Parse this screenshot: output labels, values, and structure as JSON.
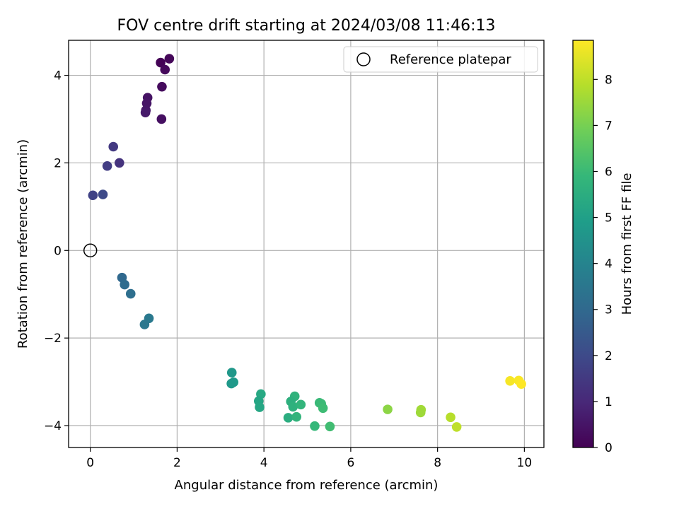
{
  "chart_data": {
    "type": "scatter",
    "title": "FOV centre drift starting at 2024/03/08 11:46:13",
    "xlabel": "Angular distance from reference (arcmin)",
    "ylabel": "Rotation from reference (arcmin)",
    "xlim": [
      -0.5,
      10.45
    ],
    "ylim": [
      -4.5,
      4.8
    ],
    "xticks": [
      0,
      2,
      4,
      6,
      8,
      10
    ],
    "xtick_labels": [
      "0",
      "2",
      "4",
      "6",
      "8",
      "10"
    ],
    "yticks": [
      4,
      2,
      0,
      -2,
      -4
    ],
    "ytick_labels": [
      "4",
      "2",
      "0",
      "−2",
      "−4"
    ],
    "grid": true,
    "legend": {
      "position": "top-right",
      "label": "Reference platepar"
    },
    "reference_point": {
      "x": 0,
      "y": 0
    },
    "colorbar": {
      "label": "Hours from first FF file",
      "range": [
        0,
        8.85
      ],
      "ticks": [
        0,
        1,
        2,
        3,
        4,
        5,
        6,
        7,
        8
      ],
      "tick_labels": [
        "0",
        "1",
        "2",
        "3",
        "4",
        "5",
        "6",
        "7",
        "8"
      ],
      "colormap": [
        "#440154",
        "#482878",
        "#3e4989",
        "#31688e",
        "#26828e",
        "#1f9e89",
        "#35b779",
        "#6ece58",
        "#b5de2b",
        "#fde725"
      ]
    },
    "points": [
      {
        "x": 1.62,
        "y": 4.29,
        "c": 0.05
      },
      {
        "x": 1.82,
        "y": 4.38,
        "c": 0.15
      },
      {
        "x": 1.72,
        "y": 4.13,
        "c": 0.2
      },
      {
        "x": 1.65,
        "y": 3.74,
        "c": 0.25
      },
      {
        "x": 1.32,
        "y": 3.49,
        "c": 0.45
      },
      {
        "x": 1.3,
        "y": 3.36,
        "c": 0.5
      },
      {
        "x": 1.28,
        "y": 3.2,
        "c": 0.55
      },
      {
        "x": 1.27,
        "y": 3.15,
        "c": 0.6
      },
      {
        "x": 1.64,
        "y": 3.0,
        "c": 0.35
      },
      {
        "x": 0.53,
        "y": 2.37,
        "c": 1.5
      },
      {
        "x": 0.67,
        "y": 2.0,
        "c": 1.3
      },
      {
        "x": 0.39,
        "y": 1.93,
        "c": 1.6
      },
      {
        "x": 0.06,
        "y": 1.26,
        "c": 1.8
      },
      {
        "x": 0.29,
        "y": 1.28,
        "c": 2.0
      },
      {
        "x": 0.73,
        "y": -0.62,
        "c": 3.0
      },
      {
        "x": 0.79,
        "y": -0.78,
        "c": 3.1
      },
      {
        "x": 0.93,
        "y": -0.99,
        "c": 3.2
      },
      {
        "x": 1.35,
        "y": -1.55,
        "c": 3.6
      },
      {
        "x": 1.25,
        "y": -1.69,
        "c": 3.5
      },
      {
        "x": 3.26,
        "y": -2.79,
        "c": 4.7
      },
      {
        "x": 3.3,
        "y": -3.01,
        "c": 4.8
      },
      {
        "x": 3.25,
        "y": -3.04,
        "c": 4.75
      },
      {
        "x": 3.93,
        "y": -3.28,
        "c": 5.3
      },
      {
        "x": 3.88,
        "y": -3.44,
        "c": 5.2
      },
      {
        "x": 3.9,
        "y": -3.58,
        "c": 5.25
      },
      {
        "x": 4.71,
        "y": -3.33,
        "c": 5.7
      },
      {
        "x": 4.62,
        "y": -3.45,
        "c": 5.6
      },
      {
        "x": 4.67,
        "y": -3.57,
        "c": 5.65
      },
      {
        "x": 4.85,
        "y": -3.52,
        "c": 5.8
      },
      {
        "x": 4.56,
        "y": -3.82,
        "c": 5.5
      },
      {
        "x": 4.75,
        "y": -3.8,
        "c": 5.75
      },
      {
        "x": 5.28,
        "y": -3.48,
        "c": 5.95
      },
      {
        "x": 5.32,
        "y": -3.5,
        "c": 6.0
      },
      {
        "x": 5.36,
        "y": -3.6,
        "c": 6.05
      },
      {
        "x": 5.17,
        "y": -4.01,
        "c": 5.9
      },
      {
        "x": 5.52,
        "y": -4.02,
        "c": 6.1
      },
      {
        "x": 6.85,
        "y": -3.63,
        "c": 7.3
      },
      {
        "x": 7.62,
        "y": -3.64,
        "c": 7.6
      },
      {
        "x": 7.61,
        "y": -3.7,
        "c": 7.55
      },
      {
        "x": 8.3,
        "y": -3.81,
        "c": 7.9
      },
      {
        "x": 8.44,
        "y": -4.03,
        "c": 8.0
      },
      {
        "x": 9.67,
        "y": -2.98,
        "c": 8.75
      },
      {
        "x": 9.87,
        "y": -2.97,
        "c": 8.8
      },
      {
        "x": 9.93,
        "y": -3.05,
        "c": 8.85
      }
    ]
  }
}
